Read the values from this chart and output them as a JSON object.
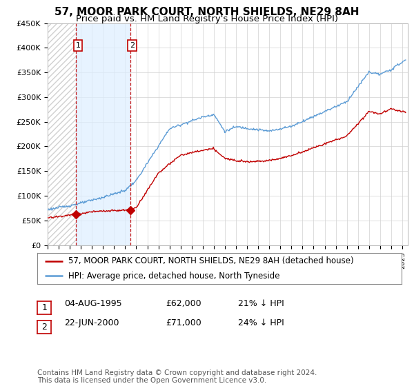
{
  "title": "57, MOOR PARK COURT, NORTH SHIELDS, NE29 8AH",
  "subtitle": "Price paid vs. HM Land Registry's House Price Index (HPI)",
  "ylim": [
    0,
    450000
  ],
  "yticks": [
    0,
    50000,
    100000,
    150000,
    200000,
    250000,
    300000,
    350000,
    400000,
    450000
  ],
  "ytick_labels": [
    "£0",
    "£50K",
    "£100K",
    "£150K",
    "£200K",
    "£250K",
    "£300K",
    "£350K",
    "£400K",
    "£450K"
  ],
  "hpi_color": "#5b9bd5",
  "price_color": "#c00000",
  "background_color": "#ffffff",
  "grid_color": "#d0d0d0",
  "hatch_color": "#d0d0d0",
  "shade_color": "#ddeeff",
  "legend_label_price": "57, MOOR PARK COURT, NORTH SHIELDS, NE29 8AH (detached house)",
  "legend_label_hpi": "HPI: Average price, detached house, North Tyneside",
  "annotation1_date": "04-AUG-1995",
  "annotation1_price": "£62,000",
  "annotation1_pct": "21% ↓ HPI",
  "annotation2_date": "22-JUN-2000",
  "annotation2_price": "£71,000",
  "annotation2_pct": "24% ↓ HPI",
  "footnote": "Contains HM Land Registry data © Crown copyright and database right 2024.\nThis data is licensed under the Open Government Licence v3.0.",
  "purchase1_x": 1995.58,
  "purchase1_y": 62000,
  "purchase2_x": 2000.47,
  "purchase2_y": 71000,
  "vline1_x": 1995.58,
  "vline2_x": 2000.47,
  "xmin": 1993.0,
  "xmax": 2025.5,
  "title_fontsize": 11,
  "subtitle_fontsize": 9.5,
  "tick_fontsize": 8,
  "legend_fontsize": 8.5,
  "annot_fontsize": 9,
  "footnote_fontsize": 7.5
}
